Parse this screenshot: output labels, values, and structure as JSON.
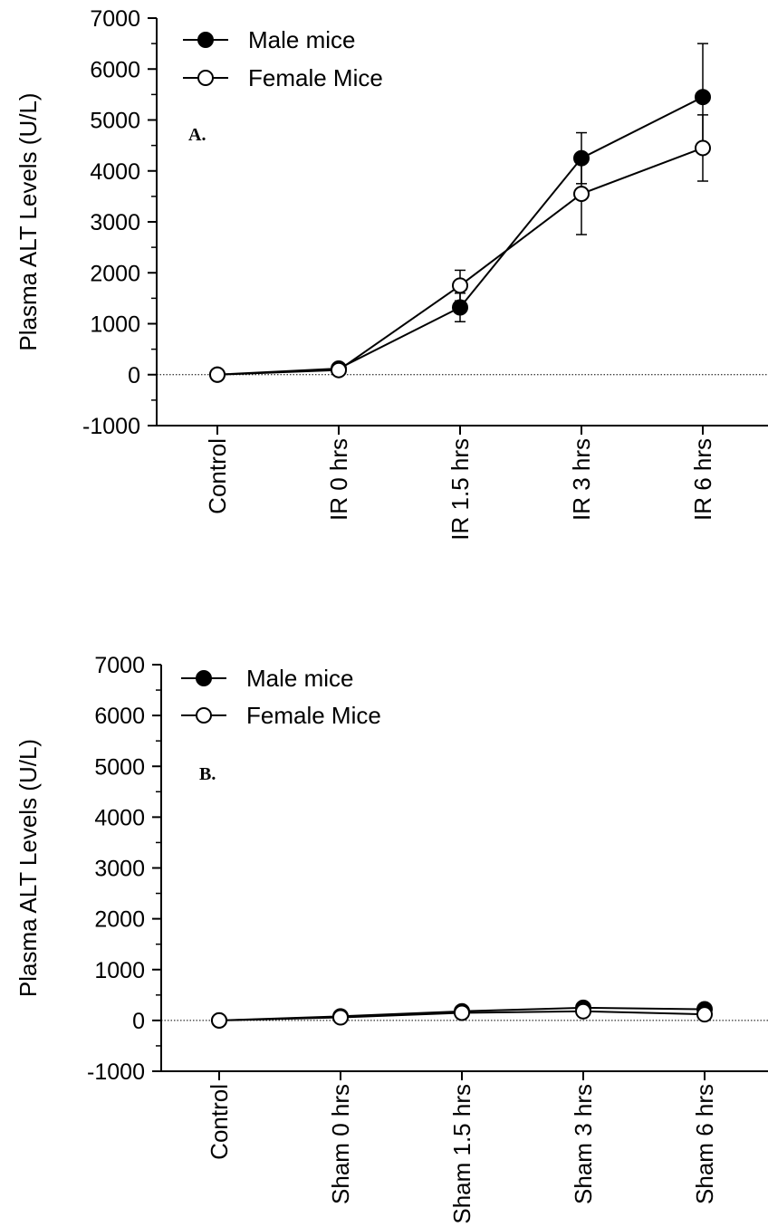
{
  "chart_data": [
    {
      "type": "line",
      "panel_label": "A.",
      "ylabel": "Plasma ALT Levels (U/L)",
      "xlabel": "",
      "categories": [
        "Control",
        "IR 0 hrs",
        "IR 1.5 hrs",
        "IR 3 hrs",
        "IR 6 hrs"
      ],
      "ylim": [
        -1000,
        7000
      ],
      "yticks": [
        -1000,
        0,
        1000,
        2000,
        3000,
        4000,
        5000,
        6000,
        7000
      ],
      "yticklabels": [
        "-1000",
        "0",
        "1000",
        "2000",
        "3000",
        "4000",
        "5000",
        "6000",
        "7000"
      ],
      "zero_line": "dotted",
      "legend_position": "top-left",
      "series": [
        {
          "name": "Male mice",
          "marker": "filled-circle",
          "color": "#000000",
          "values": [
            0,
            120,
            1320,
            4250,
            5450
          ],
          "error": [
            0,
            30,
            280,
            500,
            1050
          ]
        },
        {
          "name": "Female Mice",
          "marker": "open-circle",
          "color": "#000000",
          "values": [
            0,
            90,
            1750,
            3550,
            4450
          ],
          "error": [
            0,
            30,
            300,
            800,
            650
          ]
        }
      ]
    },
    {
      "type": "line",
      "panel_label": "B.",
      "ylabel": "Plasma ALT Levels (U/L)",
      "xlabel": "",
      "categories": [
        "Control",
        "Sham 0 hrs",
        "Sham 1.5 hrs",
        "Sham 3 hrs",
        "Sham 6 hrs"
      ],
      "ylim": [
        -1000,
        7000
      ],
      "yticks": [
        -1000,
        0,
        1000,
        2000,
        3000,
        4000,
        5000,
        6000,
        7000
      ],
      "yticklabels": [
        "-1000",
        "0",
        "1000",
        "2000",
        "3000",
        "4000",
        "5000",
        "6000",
        "7000"
      ],
      "zero_line": "dotted",
      "legend_position": "top-left",
      "series": [
        {
          "name": "Male mice",
          "marker": "filled-circle",
          "color": "#000000",
          "values": [
            0,
            80,
            180,
            250,
            220
          ],
          "error": [
            0,
            20,
            30,
            40,
            40
          ]
        },
        {
          "name": "Female Mice",
          "marker": "open-circle",
          "color": "#000000",
          "values": [
            0,
            60,
            150,
            180,
            120
          ],
          "error": [
            0,
            20,
            30,
            30,
            30
          ]
        }
      ]
    }
  ]
}
